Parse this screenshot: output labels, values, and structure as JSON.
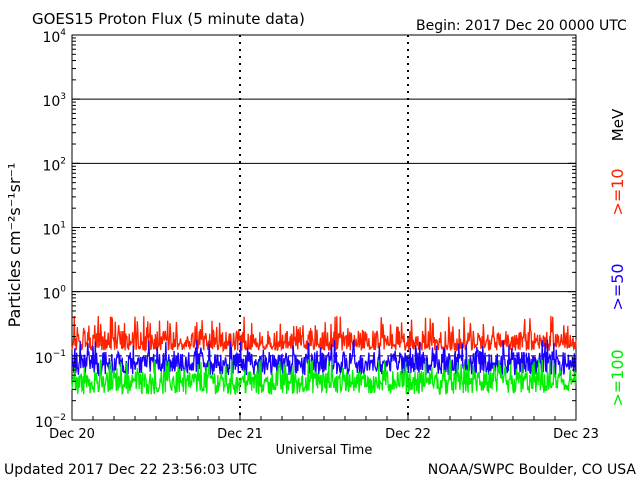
{
  "header": {
    "title": "GOES15 Proton Flux (5 minute data)",
    "begin": "Begin: 2017 Dec 20 0000 UTC"
  },
  "footer": {
    "updated": "Updated 2017 Dec 22 23:56:03 UTC",
    "source": "NOAA/SWPC Boulder, CO USA"
  },
  "colors": {
    "ge10": "#ff2200",
    "ge50": "#1a00ff",
    "ge100": "#00ee00",
    "axis": "#000000"
  },
  "chart_data": {
    "type": "line",
    "title": "GOES15 Proton Flux (5 minute data)",
    "xlabel": "Universal Time",
    "ylabel": "Particles cm⁻²s⁻¹sr⁻¹",
    "yscale": "log",
    "ylim": [
      0.01,
      10000
    ],
    "ytick_exponents": [
      -2,
      -1,
      0,
      1,
      2,
      3,
      4
    ],
    "y_solid_grid_exponents": [
      0,
      2,
      3
    ],
    "y_dashed_grid_exponents": [
      -1,
      1
    ],
    "xlim_days": [
      0,
      3
    ],
    "x_ticks": [
      {
        "day": 0,
        "label": "Dec 20"
      },
      {
        "day": 1,
        "label": "Dec 21"
      },
      {
        "day": 2,
        "label": "Dec 22"
      },
      {
        "day": 3,
        "label": "Dec 23"
      }
    ],
    "unit_label": "MeV",
    "series": [
      {
        "name": ">=10",
        "color": "#ff2200",
        "baseline": 0.16,
        "low": 0.12,
        "high": 0.42
      },
      {
        "name": ">=50",
        "color": "#1a00ff",
        "baseline": 0.08,
        "low": 0.05,
        "high": 0.18
      },
      {
        "name": ">=100",
        "color": "#00ee00",
        "baseline": 0.04,
        "low": 0.025,
        "high": 0.09
      }
    ]
  }
}
